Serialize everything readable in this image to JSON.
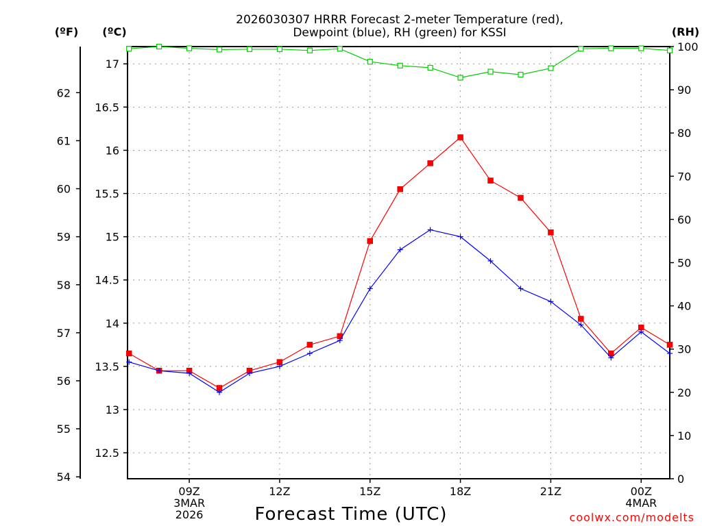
{
  "chart_data": {
    "type": "line",
    "title": "2026030307 HRRR Forecast 2-meter Temperature (red),",
    "subtitle": "Dewpoint (blue), RH (green) for KSSI",
    "xlabel": "Forecast Time (UTC)",
    "credit": "coolwx.com/modelts",
    "axes": {
      "left_outer": {
        "unit": "(ºF)",
        "ticks": [
          "54",
          "55",
          "56",
          "57",
          "58",
          "59",
          "60",
          "61",
          "62"
        ],
        "values": [
          54,
          55,
          56,
          57,
          58,
          59,
          60,
          61,
          62
        ]
      },
      "left_inner": {
        "unit": "(ºC)",
        "ticks": [
          "12.5",
          "13",
          "13.5",
          "14",
          "14.5",
          "15",
          "15.5",
          "16",
          "16.5",
          "17"
        ],
        "values": [
          12.5,
          13,
          13.5,
          14,
          14.5,
          15,
          15.5,
          16,
          16.5,
          17
        ],
        "ylim": [
          12.2,
          17.2
        ]
      },
      "right": {
        "unit": "(RH)",
        "ticks": [
          "0",
          "10",
          "20",
          "30",
          "40",
          "50",
          "60",
          "70",
          "80",
          "90",
          "100"
        ],
        "values": [
          0,
          10,
          20,
          30,
          40,
          50,
          60,
          70,
          80,
          90,
          100
        ],
        "ylim": [
          0,
          100
        ]
      }
    },
    "x": [
      7,
      8,
      9,
      10,
      11,
      12,
      13,
      14,
      15,
      16,
      17,
      18,
      19,
      20,
      21,
      22,
      23,
      24,
      24.95
    ],
    "xlim": [
      6.95,
      24.95
    ],
    "x_ticks": [
      {
        "x": 9,
        "lines": [
          "09Z",
          "3MAR",
          "2026"
        ]
      },
      {
        "x": 12,
        "lines": [
          "12Z"
        ]
      },
      {
        "x": 15,
        "lines": [
          "15Z"
        ]
      },
      {
        "x": 18,
        "lines": [
          "18Z"
        ]
      },
      {
        "x": 21,
        "lines": [
          "21Z"
        ]
      },
      {
        "x": 24,
        "lines": [
          "00Z",
          "4MAR"
        ]
      }
    ],
    "series": [
      {
        "name": "Temperature",
        "unit": "C",
        "color": "#ff0000",
        "marker": "square",
        "values": [
          13.65,
          13.45,
          13.45,
          13.25,
          13.45,
          13.55,
          13.75,
          13.85,
          14.95,
          15.55,
          15.85,
          16.15,
          15.65,
          15.45,
          15.05,
          14.05,
          13.65,
          13.95,
          13.75
        ]
      },
      {
        "name": "Dewpoint",
        "unit": "C",
        "color": "#0000ff",
        "marker": "plus",
        "values": [
          13.55,
          13.45,
          13.42,
          13.2,
          13.42,
          13.5,
          13.65,
          13.8,
          14.4,
          14.85,
          15.08,
          15.0,
          14.72,
          14.4,
          14.25,
          13.98,
          13.6,
          13.9,
          13.65
        ]
      },
      {
        "name": "RH",
        "unit": "%",
        "color": "#00cc00",
        "marker": "open-square",
        "values": [
          99.5,
          100,
          99.6,
          99.3,
          99.4,
          99.4,
          99.1,
          99.5,
          96.5,
          95.6,
          95.1,
          92.8,
          94.2,
          93.5,
          95.0,
          99.5,
          99.6,
          99.6,
          99.1
        ]
      }
    ]
  }
}
